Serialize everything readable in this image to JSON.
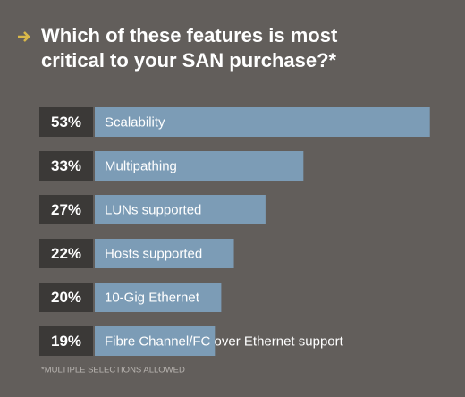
{
  "chart_data": {
    "type": "bar",
    "title": "Which of these features is most critical to your SAN purchase?*",
    "categories": [
      "Scalability",
      "Multipathing",
      "LUNs supported",
      "Hosts supported",
      "10-Gig Ethernet",
      "Fibre Channel/FC over Ethernet support"
    ],
    "values": [
      53,
      33,
      27,
      22,
      20,
      19
    ],
    "value_labels": [
      "53%",
      "33%",
      "27%",
      "22%",
      "20%",
      "19%"
    ],
    "color": "#7c9cb6",
    "footnote": "*MULTIPLE SELECTIONS ALLOWED"
  }
}
